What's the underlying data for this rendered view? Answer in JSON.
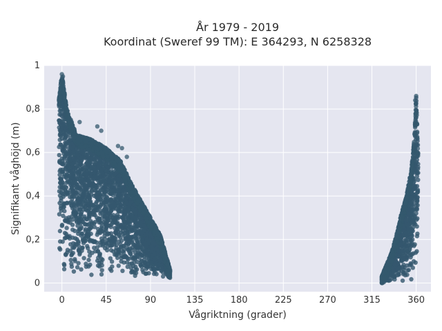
{
  "chart_data": {
    "type": "scatter",
    "title": "År 1979 - 2019",
    "subtitle": "Koordinat (Sweref 99 TM): E 364293, N 6258328",
    "xlabel": "Vågriktning (grader)",
    "ylabel": "Signifikant våghöjd (m)",
    "xlim": [
      -18,
      375
    ],
    "ylim": [
      -0.04,
      1.0
    ],
    "x_ticks": [
      0,
      45,
      90,
      135,
      180,
      225,
      270,
      315,
      360
    ],
    "x_tick_labels": [
      "0",
      "45",
      "90",
      "135",
      "180",
      "225",
      "270",
      "315",
      "360"
    ],
    "y_ticks": [
      0,
      0.2,
      0.4,
      0.6,
      0.8,
      1
    ],
    "y_tick_labels": [
      "0",
      "0,2",
      "0,4",
      "0,6",
      "0,8",
      "1"
    ],
    "grid": true,
    "legend": "none",
    "marker_color": "#34586e",
    "background_color": "#e5e6f0",
    "clusters": [
      {
        "x_range": [
          -3,
          110
        ],
        "y_min": 0.02,
        "envelope_x": [
          -3,
          0,
          5,
          15,
          30,
          45,
          60,
          70,
          80,
          90,
          100,
          105,
          110
        ],
        "envelope_y": [
          0.85,
          0.96,
          0.8,
          0.68,
          0.66,
          0.62,
          0.56,
          0.46,
          0.38,
          0.3,
          0.22,
          0.14,
          0.06
        ]
      },
      {
        "x_range": [
          325,
          362
        ],
        "y_min": 0.0,
        "envelope_x": [
          325,
          335,
          340,
          345,
          350,
          355,
          358,
          360,
          362
        ],
        "envelope_y": [
          0.03,
          0.14,
          0.22,
          0.32,
          0.4,
          0.52,
          0.66,
          0.86,
          0.6
        ]
      }
    ],
    "outliers": [
      {
        "x": 0,
        "y": 0.96
      },
      {
        "x": 1,
        "y": 0.95
      },
      {
        "x": -1,
        "y": 0.92
      },
      {
        "x": 2,
        "y": 0.89
      },
      {
        "x": 18,
        "y": 0.74
      },
      {
        "x": 36,
        "y": 0.72
      },
      {
        "x": 40,
        "y": 0.7
      },
      {
        "x": 57,
        "y": 0.63
      },
      {
        "x": 61,
        "y": 0.62
      },
      {
        "x": 66,
        "y": 0.58
      },
      {
        "x": 360,
        "y": 0.86
      },
      {
        "x": 359,
        "y": 0.84
      }
    ]
  }
}
